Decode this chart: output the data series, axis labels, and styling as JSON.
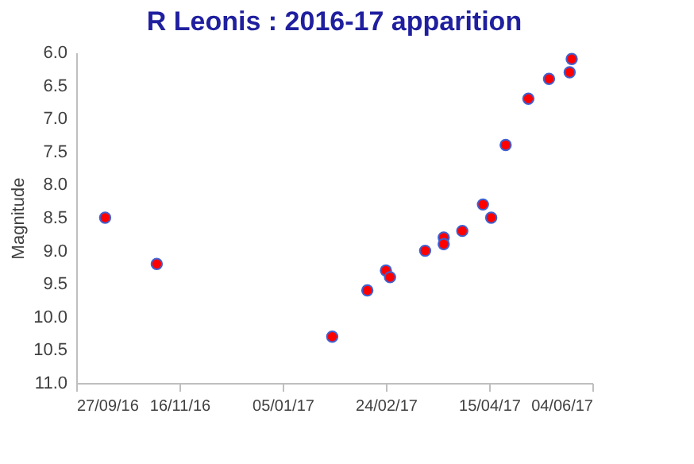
{
  "chart_data": {
    "type": "scatter",
    "title": "R Leonis : 2016-17 apparition",
    "ylabel": "Magnitude",
    "x": [
      "2016-10-11",
      "2016-11-05",
      "2017-01-29",
      "2017-02-15",
      "2017-02-24",
      "2017-02-26",
      "2017-03-15",
      "2017-03-24",
      "2017-03-24",
      "2017-04-02",
      "2017-04-12",
      "2017-04-16",
      "2017-04-23",
      "2017-05-04",
      "2017-05-14",
      "2017-05-24",
      "2017-05-25"
    ],
    "values": [
      8.5,
      9.2,
      10.3,
      9.6,
      9.3,
      9.4,
      9.0,
      8.8,
      8.9,
      8.7,
      8.3,
      8.5,
      7.4,
      6.7,
      6.4,
      6.3,
      6.1
    ],
    "color": "#ff0000",
    "marker": "circle",
    "xlim": [
      "2016-09-27",
      "2017-06-04"
    ],
    "xticks": [
      {
        "value": "2016-09-27",
        "label": "27/09/16"
      },
      {
        "value": "2016-11-16",
        "label": "16/11/16"
      },
      {
        "value": "2017-01-05",
        "label": "05/01/17"
      },
      {
        "value": "2017-02-24",
        "label": "24/02/17"
      },
      {
        "value": "2017-04-15",
        "label": "15/04/17"
      },
      {
        "value": "2017-06-04",
        "label": "04/06/17"
      }
    ],
    "ylim": [
      11.0,
      6.0
    ],
    "yticks": [
      {
        "value": 6.0,
        "label": "6.0"
      },
      {
        "value": 6.5,
        "label": "6.5"
      },
      {
        "value": 7.0,
        "label": "7.0"
      },
      {
        "value": 7.5,
        "label": "7.5"
      },
      {
        "value": 8.0,
        "label": "8.0"
      },
      {
        "value": 8.5,
        "label": "8.5"
      },
      {
        "value": 9.0,
        "label": "9.0"
      },
      {
        "value": 9.5,
        "label": "9.5"
      },
      {
        "value": 10.0,
        "label": "10.0"
      },
      {
        "value": 10.5,
        "label": "10.5"
      },
      {
        "value": 11.0,
        "label": "11.0"
      }
    ],
    "grid": false
  }
}
